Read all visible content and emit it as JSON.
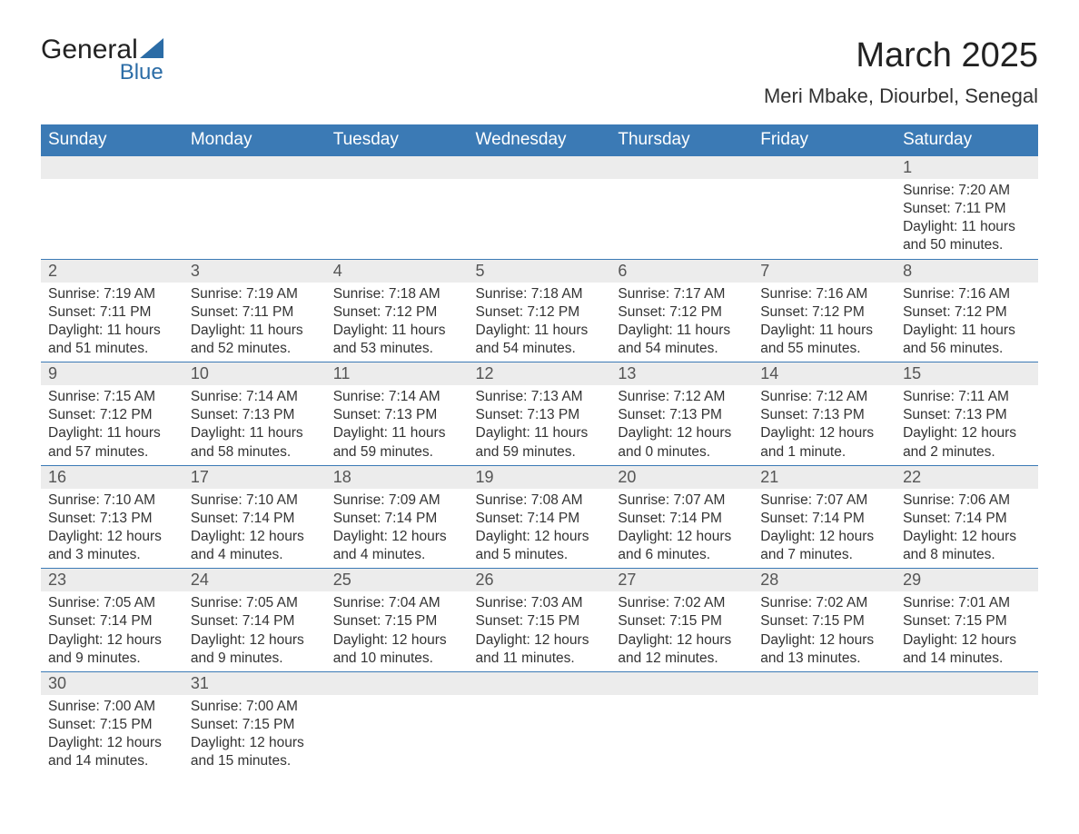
{
  "logo": {
    "text_general": "General",
    "text_blue": "Blue",
    "triangle_color": "#2b6ca6"
  },
  "header": {
    "month_title": "March 2025",
    "location": "Meri Mbake, Diourbel, Senegal"
  },
  "colors": {
    "header_bg": "#3b7ab5",
    "header_text": "#ffffff",
    "daynum_bg": "#ececec",
    "border": "#3b7ab5",
    "body_text": "#333333"
  },
  "typography": {
    "month_title_fontsize": 38,
    "location_fontsize": 22,
    "th_fontsize": 19,
    "daynum_fontsize": 18,
    "body_fontsize": 15.5
  },
  "layout": {
    "columns": 7,
    "rows": 6,
    "leading_empty_cells": 6
  },
  "weekdays": [
    "Sunday",
    "Monday",
    "Tuesday",
    "Wednesday",
    "Thursday",
    "Friday",
    "Saturday"
  ],
  "days": [
    {
      "n": "1",
      "sunrise": "Sunrise: 7:20 AM",
      "sunset": "Sunset: 7:11 PM",
      "d1": "Daylight: 11 hours",
      "d2": "and 50 minutes."
    },
    {
      "n": "2",
      "sunrise": "Sunrise: 7:19 AM",
      "sunset": "Sunset: 7:11 PM",
      "d1": "Daylight: 11 hours",
      "d2": "and 51 minutes."
    },
    {
      "n": "3",
      "sunrise": "Sunrise: 7:19 AM",
      "sunset": "Sunset: 7:11 PM",
      "d1": "Daylight: 11 hours",
      "d2": "and 52 minutes."
    },
    {
      "n": "4",
      "sunrise": "Sunrise: 7:18 AM",
      "sunset": "Sunset: 7:12 PM",
      "d1": "Daylight: 11 hours",
      "d2": "and 53 minutes."
    },
    {
      "n": "5",
      "sunrise": "Sunrise: 7:18 AM",
      "sunset": "Sunset: 7:12 PM",
      "d1": "Daylight: 11 hours",
      "d2": "and 54 minutes."
    },
    {
      "n": "6",
      "sunrise": "Sunrise: 7:17 AM",
      "sunset": "Sunset: 7:12 PM",
      "d1": "Daylight: 11 hours",
      "d2": "and 54 minutes."
    },
    {
      "n": "7",
      "sunrise": "Sunrise: 7:16 AM",
      "sunset": "Sunset: 7:12 PM",
      "d1": "Daylight: 11 hours",
      "d2": "and 55 minutes."
    },
    {
      "n": "8",
      "sunrise": "Sunrise: 7:16 AM",
      "sunset": "Sunset: 7:12 PM",
      "d1": "Daylight: 11 hours",
      "d2": "and 56 minutes."
    },
    {
      "n": "9",
      "sunrise": "Sunrise: 7:15 AM",
      "sunset": "Sunset: 7:12 PM",
      "d1": "Daylight: 11 hours",
      "d2": "and 57 minutes."
    },
    {
      "n": "10",
      "sunrise": "Sunrise: 7:14 AM",
      "sunset": "Sunset: 7:13 PM",
      "d1": "Daylight: 11 hours",
      "d2": "and 58 minutes."
    },
    {
      "n": "11",
      "sunrise": "Sunrise: 7:14 AM",
      "sunset": "Sunset: 7:13 PM",
      "d1": "Daylight: 11 hours",
      "d2": "and 59 minutes."
    },
    {
      "n": "12",
      "sunrise": "Sunrise: 7:13 AM",
      "sunset": "Sunset: 7:13 PM",
      "d1": "Daylight: 11 hours",
      "d2": "and 59 minutes."
    },
    {
      "n": "13",
      "sunrise": "Sunrise: 7:12 AM",
      "sunset": "Sunset: 7:13 PM",
      "d1": "Daylight: 12 hours",
      "d2": "and 0 minutes."
    },
    {
      "n": "14",
      "sunrise": "Sunrise: 7:12 AM",
      "sunset": "Sunset: 7:13 PM",
      "d1": "Daylight: 12 hours",
      "d2": "and 1 minute."
    },
    {
      "n": "15",
      "sunrise": "Sunrise: 7:11 AM",
      "sunset": "Sunset: 7:13 PM",
      "d1": "Daylight: 12 hours",
      "d2": "and 2 minutes."
    },
    {
      "n": "16",
      "sunrise": "Sunrise: 7:10 AM",
      "sunset": "Sunset: 7:13 PM",
      "d1": "Daylight: 12 hours",
      "d2": "and 3 minutes."
    },
    {
      "n": "17",
      "sunrise": "Sunrise: 7:10 AM",
      "sunset": "Sunset: 7:14 PM",
      "d1": "Daylight: 12 hours",
      "d2": "and 4 minutes."
    },
    {
      "n": "18",
      "sunrise": "Sunrise: 7:09 AM",
      "sunset": "Sunset: 7:14 PM",
      "d1": "Daylight: 12 hours",
      "d2": "and 4 minutes."
    },
    {
      "n": "19",
      "sunrise": "Sunrise: 7:08 AM",
      "sunset": "Sunset: 7:14 PM",
      "d1": "Daylight: 12 hours",
      "d2": "and 5 minutes."
    },
    {
      "n": "20",
      "sunrise": "Sunrise: 7:07 AM",
      "sunset": "Sunset: 7:14 PM",
      "d1": "Daylight: 12 hours",
      "d2": "and 6 minutes."
    },
    {
      "n": "21",
      "sunrise": "Sunrise: 7:07 AM",
      "sunset": "Sunset: 7:14 PM",
      "d1": "Daylight: 12 hours",
      "d2": "and 7 minutes."
    },
    {
      "n": "22",
      "sunrise": "Sunrise: 7:06 AM",
      "sunset": "Sunset: 7:14 PM",
      "d1": "Daylight: 12 hours",
      "d2": "and 8 minutes."
    },
    {
      "n": "23",
      "sunrise": "Sunrise: 7:05 AM",
      "sunset": "Sunset: 7:14 PM",
      "d1": "Daylight: 12 hours",
      "d2": "and 9 minutes."
    },
    {
      "n": "24",
      "sunrise": "Sunrise: 7:05 AM",
      "sunset": "Sunset: 7:14 PM",
      "d1": "Daylight: 12 hours",
      "d2": "and 9 minutes."
    },
    {
      "n": "25",
      "sunrise": "Sunrise: 7:04 AM",
      "sunset": "Sunset: 7:15 PM",
      "d1": "Daylight: 12 hours",
      "d2": "and 10 minutes."
    },
    {
      "n": "26",
      "sunrise": "Sunrise: 7:03 AM",
      "sunset": "Sunset: 7:15 PM",
      "d1": "Daylight: 12 hours",
      "d2": "and 11 minutes."
    },
    {
      "n": "27",
      "sunrise": "Sunrise: 7:02 AM",
      "sunset": "Sunset: 7:15 PM",
      "d1": "Daylight: 12 hours",
      "d2": "and 12 minutes."
    },
    {
      "n": "28",
      "sunrise": "Sunrise: 7:02 AM",
      "sunset": "Sunset: 7:15 PM",
      "d1": "Daylight: 12 hours",
      "d2": "and 13 minutes."
    },
    {
      "n": "29",
      "sunrise": "Sunrise: 7:01 AM",
      "sunset": "Sunset: 7:15 PM",
      "d1": "Daylight: 12 hours",
      "d2": "and 14 minutes."
    },
    {
      "n": "30",
      "sunrise": "Sunrise: 7:00 AM",
      "sunset": "Sunset: 7:15 PM",
      "d1": "Daylight: 12 hours",
      "d2": "and 14 minutes."
    },
    {
      "n": "31",
      "sunrise": "Sunrise: 7:00 AM",
      "sunset": "Sunset: 7:15 PM",
      "d1": "Daylight: 12 hours",
      "d2": "and 15 minutes."
    }
  ]
}
